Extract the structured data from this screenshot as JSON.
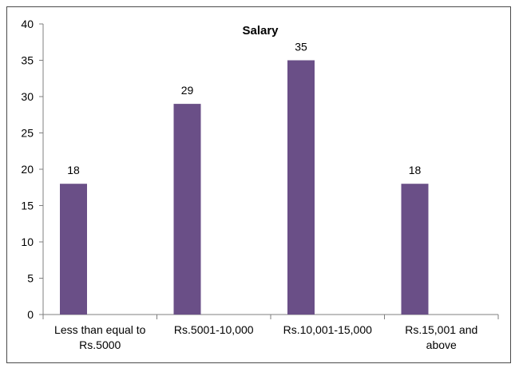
{
  "chart_data": {
    "type": "bar",
    "title": "Salary",
    "xlabel": "",
    "ylabel": "",
    "categories": [
      [
        "Less than equal to",
        "Rs.5000"
      ],
      [
        "Rs.5001-10,000"
      ],
      [
        "Rs.10,001-15,000"
      ],
      [
        "Rs.15,001 and",
        "above"
      ]
    ],
    "values": [
      18,
      29,
      35,
      18
    ],
    "ylim": [
      0,
      40
    ],
    "yticks": [
      0,
      5,
      10,
      15,
      20,
      25,
      30,
      35,
      40
    ],
    "grid": false,
    "legend": "none",
    "bar_color": "#6a4f87"
  }
}
